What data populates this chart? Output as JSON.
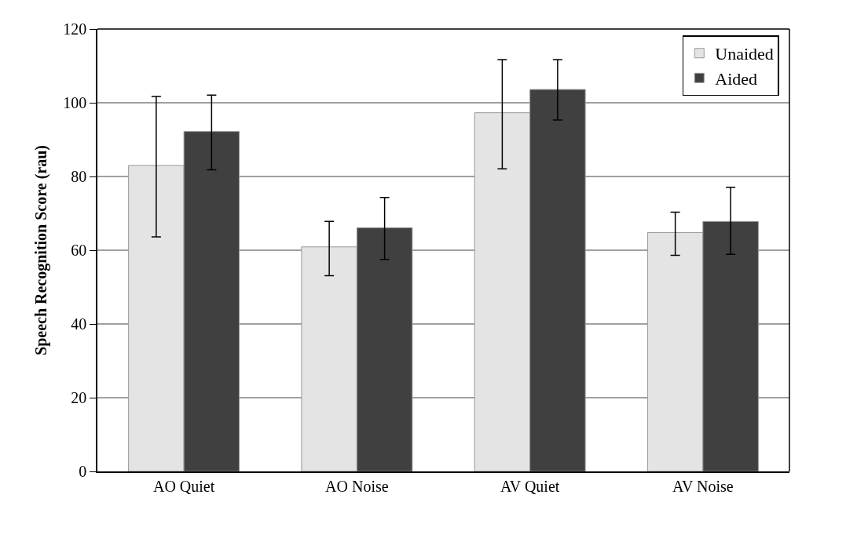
{
  "chart_data": {
    "type": "bar",
    "ylabel": "Speech Recognition Score (rau)",
    "categories": [
      "AO Quiet",
      "AO Noise",
      "AV Quiet",
      "AV Noise"
    ],
    "series": [
      {
        "name": "Unaided",
        "color": "#e4e4e4",
        "values": [
          83.0,
          60.9,
          97.3,
          64.8
        ],
        "errors": [
          [
            63.6,
            101.7
          ],
          [
            53.1,
            67.8
          ],
          [
            82.1,
            111.7
          ],
          [
            58.6,
            70.3
          ]
        ]
      },
      {
        "name": "Aided",
        "color": "#404040",
        "values": [
          92.2,
          66.1,
          103.6,
          67.8
        ],
        "errors": [
          [
            81.8,
            102.1
          ],
          [
            57.5,
            74.3
          ],
          [
            95.3,
            111.7
          ],
          [
            58.9,
            77.1
          ]
        ]
      }
    ],
    "ylim": [
      0,
      120
    ],
    "yticks": [
      0,
      20,
      40,
      60,
      80,
      100,
      120
    ],
    "grid": "y",
    "legend": "top right"
  }
}
